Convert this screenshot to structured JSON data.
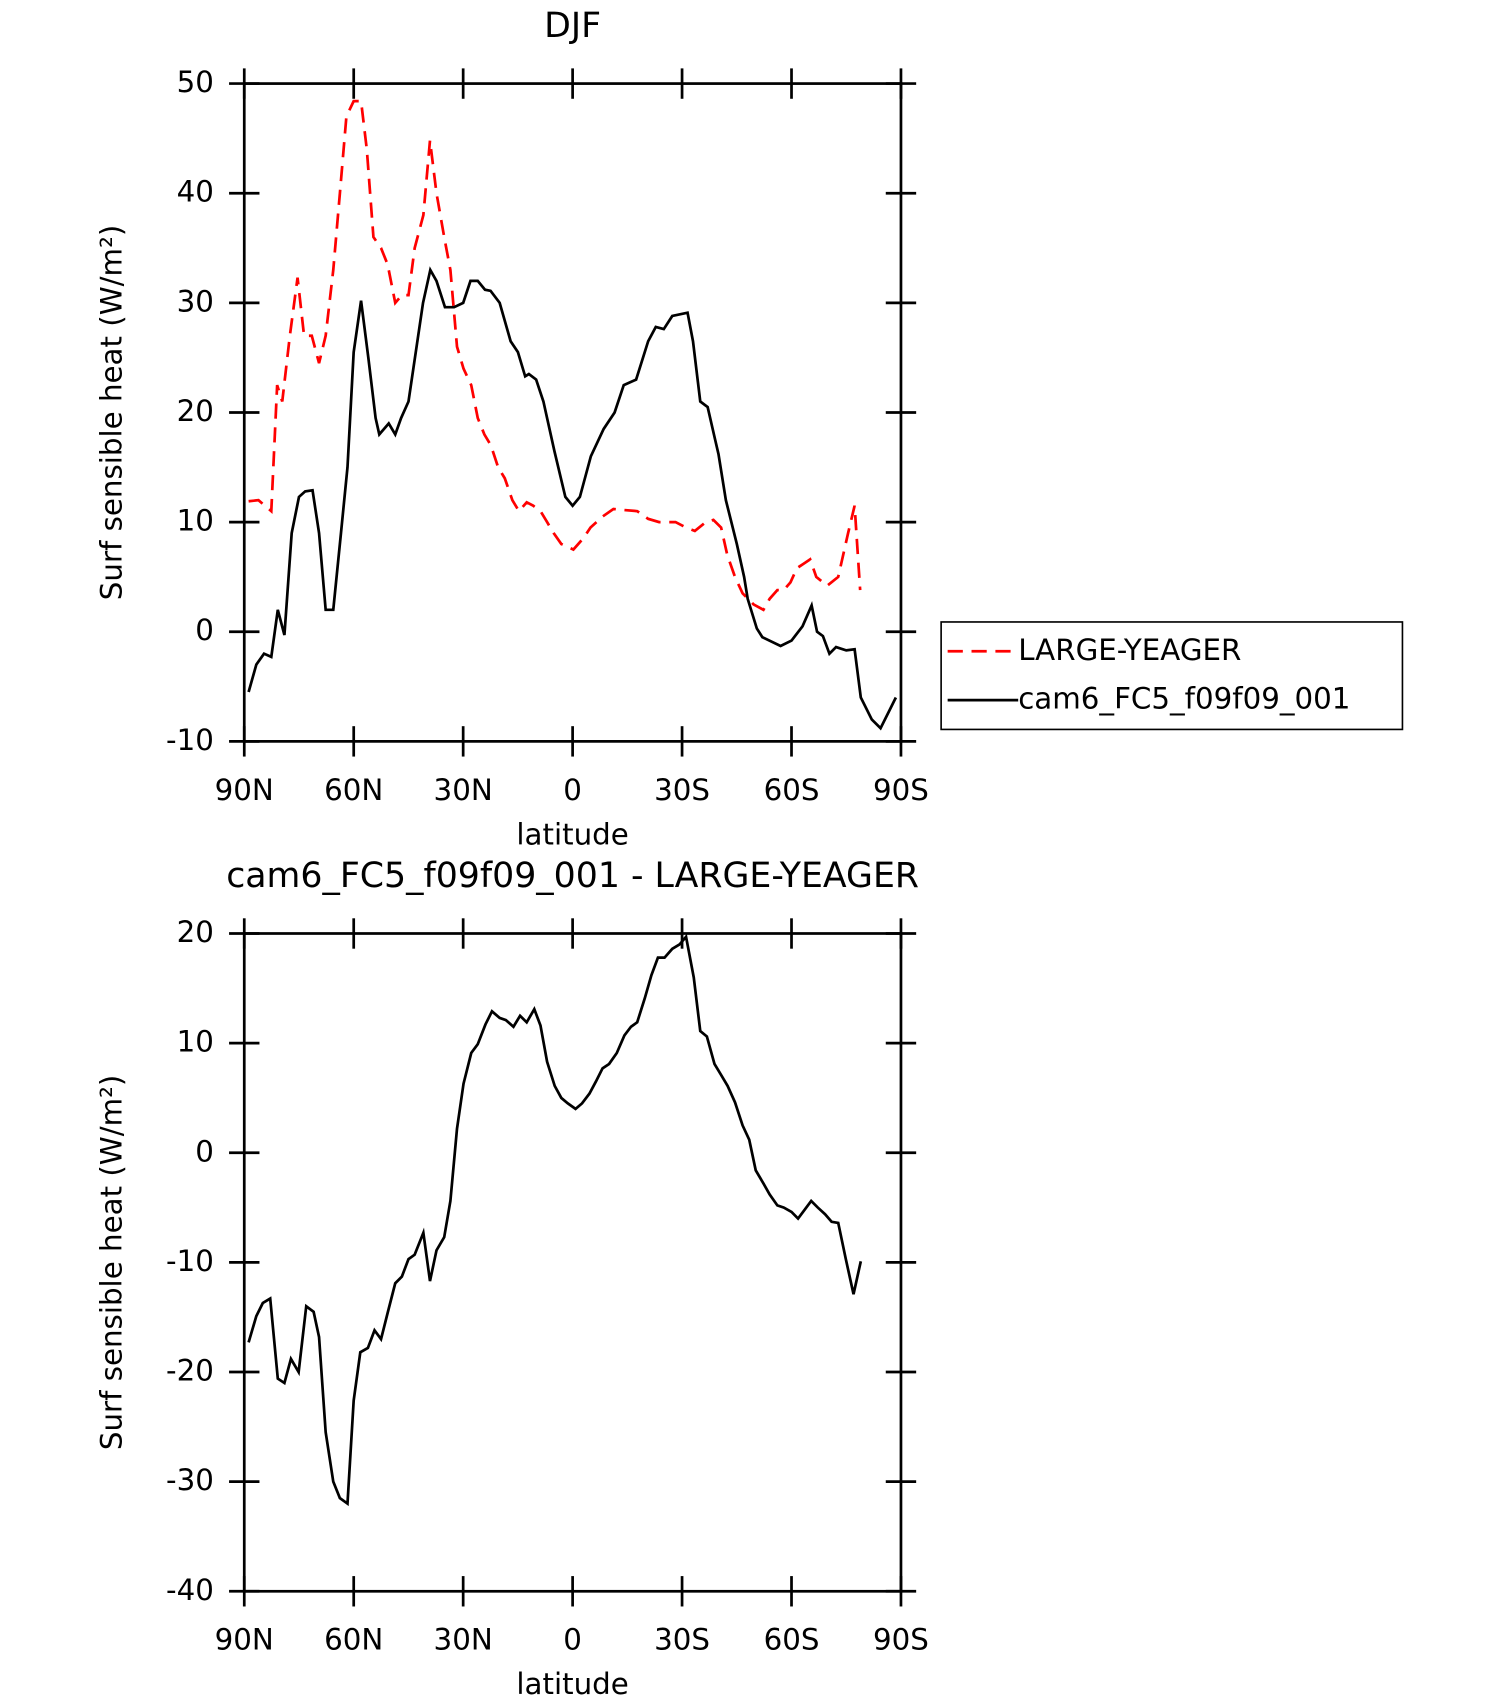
{
  "chart_data": [
    {
      "type": "line",
      "title": "DJF",
      "xlabel": "latitude",
      "ylabel": "Surf sensible heat (W/m²)",
      "xlim": [
        90,
        -90
      ],
      "xticks": [
        {
          "value": 90,
          "label": "90N"
        },
        {
          "value": 60,
          "label": "60N"
        },
        {
          "value": 30,
          "label": "30N"
        },
        0,
        {
          "value": -30,
          "label": "30S"
        },
        {
          "value": -60,
          "label": "60S"
        },
        {
          "value": -90,
          "label": "90S"
        }
      ],
      "ylim": [
        -10,
        50
      ],
      "yticks": [
        -10,
        0,
        10,
        20,
        30,
        40,
        50
      ],
      "legend": "outside-right",
      "series": [
        {
          "name": "LARGE-YEAGER",
          "color": "#ff0000",
          "dash": true,
          "x": [
            88.8,
            86.1,
            82.6,
            81,
            79.6,
            77.5,
            75.4,
            73.6,
            71.5,
            69.5,
            67.7,
            65.6,
            63.8,
            62,
            60,
            58,
            56.4,
            54.6,
            52.5,
            50.7,
            48.6,
            46.8,
            45,
            43.3,
            40.9,
            39.1,
            37.3,
            35.2,
            33.5,
            31.7,
            29.9,
            27.8,
            26,
            24.2,
            22.4,
            20.4,
            18.6,
            16.5,
            14.7,
            12.6,
            10.8,
            8.8,
            7,
            5.2,
            3.1,
            -0.2,
            -2.9,
            -4.9,
            -8.2,
            -11.2,
            -14.2,
            -17.7,
            -20.7,
            -23.7,
            -28.2,
            -31.1,
            -33.5,
            -36.5,
            -38.6,
            -40.7,
            -42.4,
            -44.5,
            -46.6,
            -49.6,
            -52.3,
            -54,
            -56.1,
            -57.9,
            -59.7,
            -61.5,
            -63.3,
            -65.1,
            -66.8,
            -69.8,
            -72.8,
            -75.5,
            -77.3,
            -78.8
          ],
          "values": [
            11.9,
            12,
            11,
            22.5,
            21,
            27,
            32.3,
            27,
            27,
            24.5,
            27,
            33,
            40,
            47,
            48.4,
            48.4,
            44,
            36,
            35,
            33.5,
            30,
            30.7,
            30.7,
            35,
            38,
            44.8,
            40,
            36,
            33,
            26,
            24,
            22.5,
            19.5,
            18,
            17,
            15,
            14,
            12,
            11,
            11.8,
            11.5,
            11,
            10,
            9,
            8,
            7.5,
            8.5,
            9.5,
            10.5,
            11.2,
            11.1,
            11,
            10.3,
            10,
            10,
            9.5,
            9.2,
            10,
            10.2,
            9.5,
            7,
            5,
            3.5,
            2.5,
            2,
            3,
            3.8,
            3.8,
            4.5,
            5.8,
            6.2,
            6.6,
            5,
            4.2,
            5,
            9,
            11.5,
            3.8
          ]
        },
        {
          "name": "cam6_FC5_f09f09_001",
          "color": "#000000",
          "dash": false,
          "x": [
            88.8,
            86.7,
            84.6,
            82.6,
            80.8,
            79,
            77,
            75,
            73.3,
            71.3,
            69.5,
            67.7,
            65.6,
            63.5,
            61.7,
            60,
            58,
            56,
            54,
            53,
            50.4,
            48.6,
            47,
            45,
            41,
            39,
            37.3,
            35,
            32.5,
            30,
            28,
            26,
            24,
            22.5,
            20,
            17,
            15,
            13,
            12,
            10,
            8,
            5,
            2,
            0,
            -2,
            -5,
            -8.5,
            -11.5,
            -14,
            -17.4,
            -20.7,
            -22.8,
            -25,
            -27.3,
            -31.5,
            -33,
            -35,
            -37,
            -39,
            -40,
            -42,
            -45,
            -47,
            -48,
            -50.5,
            -52,
            -57,
            -60,
            -63,
            -65.5,
            -67,
            -68.6,
            -70.4,
            -72.2,
            -75,
            -77.3,
            -79,
            -82,
            -84.4,
            -88.6
          ],
          "values": [
            -5.5,
            -3,
            -2,
            -2.3,
            2,
            -0.3,
            9,
            12.3,
            12.8,
            12.9,
            9,
            2,
            2,
            9,
            15,
            25.5,
            30.2,
            25,
            19.5,
            18,
            19,
            18,
            19.5,
            21,
            30,
            33,
            32,
            29.6,
            29.6,
            30,
            32,
            32,
            31.2,
            31.1,
            30,
            26.5,
            25.5,
            23.3,
            23.5,
            23,
            21,
            16.5,
            12.3,
            11.5,
            12.3,
            16,
            18.5,
            20,
            22.5,
            23,
            26.5,
            27.8,
            27.6,
            28.8,
            29.1,
            26.5,
            21,
            20.5,
            17.6,
            16.2,
            12,
            8,
            5,
            3,
            0.3,
            -0.5,
            -1.3,
            -0.8,
            0.5,
            2.4,
            0,
            -0.4,
            -2,
            -1.4,
            -1.7,
            -1.6,
            -6,
            -8,
            -8.8,
            -6
          ]
        }
      ]
    },
    {
      "type": "line",
      "title": "cam6_FC5_f09f09_001 - LARGE-YEAGER",
      "xlabel": "latitude",
      "ylabel": "Surf sensible heat (W/m²)",
      "xlim": [
        90,
        -90
      ],
      "xticks": [
        {
          "value": 90,
          "label": "90N"
        },
        {
          "value": 60,
          "label": "60N"
        },
        {
          "value": 30,
          "label": "30N"
        },
        0,
        {
          "value": -30,
          "label": "30S"
        },
        {
          "value": -60,
          "label": "60S"
        },
        {
          "value": -90,
          "label": "90S"
        }
      ],
      "ylim": [
        -40,
        20
      ],
      "yticks": [
        -40,
        -30,
        -20,
        -10,
        0,
        10,
        20
      ],
      "color": "#000000",
      "x": [
        88.8,
        86.7,
        84.9,
        82.9,
        80.8,
        79,
        77.2,
        75.1,
        73,
        71,
        69.5,
        67.7,
        65.6,
        63.8,
        61.7,
        60,
        58.2,
        56.1,
        54.3,
        52.5,
        50.7,
        48.6,
        46.8,
        45,
        43.3,
        40.9,
        39.1,
        37.3,
        35.2,
        33.5,
        31.7,
        29.9,
        27.8,
        26,
        23.9,
        22.1,
        20,
        18.3,
        16.2,
        14.4,
        12.6,
        10.5,
        8.8,
        7,
        4.9,
        3.1,
        1.3,
        -0.8,
        -2.6,
        -4.6,
        -6.4,
        -8.2,
        -10,
        -12.1,
        -14.2,
        -16,
        -17.7,
        -19.8,
        -21.6,
        -23.4,
        -25.2,
        -27.3,
        -29.3,
        -31.1,
        -33.2,
        -35,
        -36.8,
        -38.9,
        -40.7,
        -42.5,
        -44.5,
        -46.6,
        -48.4,
        -50.2,
        -52.3,
        -54,
        -56.1,
        -57.9,
        -60,
        -61.8,
        -63.6,
        -65.4,
        -67.2,
        -69.2,
        -71,
        -72.8,
        -74.9,
        -77,
        -79
      ],
      "values": [
        -17.3,
        -14.9,
        -13.7,
        -13.3,
        -20.6,
        -21,
        -18.8,
        -20,
        -14,
        -14.5,
        -16.8,
        -25.5,
        -30,
        -31.5,
        -32,
        -22.6,
        -18.2,
        -17.8,
        -16.2,
        -17,
        -14.6,
        -11.9,
        -11.3,
        -9.7,
        -9.3,
        -7.3,
        -11.7,
        -8.9,
        -7.7,
        -4.4,
        2.2,
        6.3,
        9.1,
        9.9,
        11.7,
        12.9,
        12.3,
        12.1,
        11.5,
        12.5,
        11.9,
        13.1,
        11.6,
        8.3,
        6.1,
        5,
        4.5,
        4,
        4.5,
        5.4,
        6.5,
        7.7,
        8.1,
        9.1,
        10.7,
        11.5,
        11.9,
        14.1,
        16.2,
        17.8,
        17.8,
        18.6,
        19,
        19.7,
        16,
        11.1,
        10.6,
        8.1,
        7.1,
        6.1,
        4.6,
        2.5,
        1.2,
        -1.6,
        -2.8,
        -3.8,
        -4.8,
        -5,
        -5.4,
        -6,
        -5.2,
        -4.4,
        -5,
        -5.6,
        -6.3,
        -6.4,
        -9.7,
        -12.9,
        -9.9
      ]
    }
  ]
}
